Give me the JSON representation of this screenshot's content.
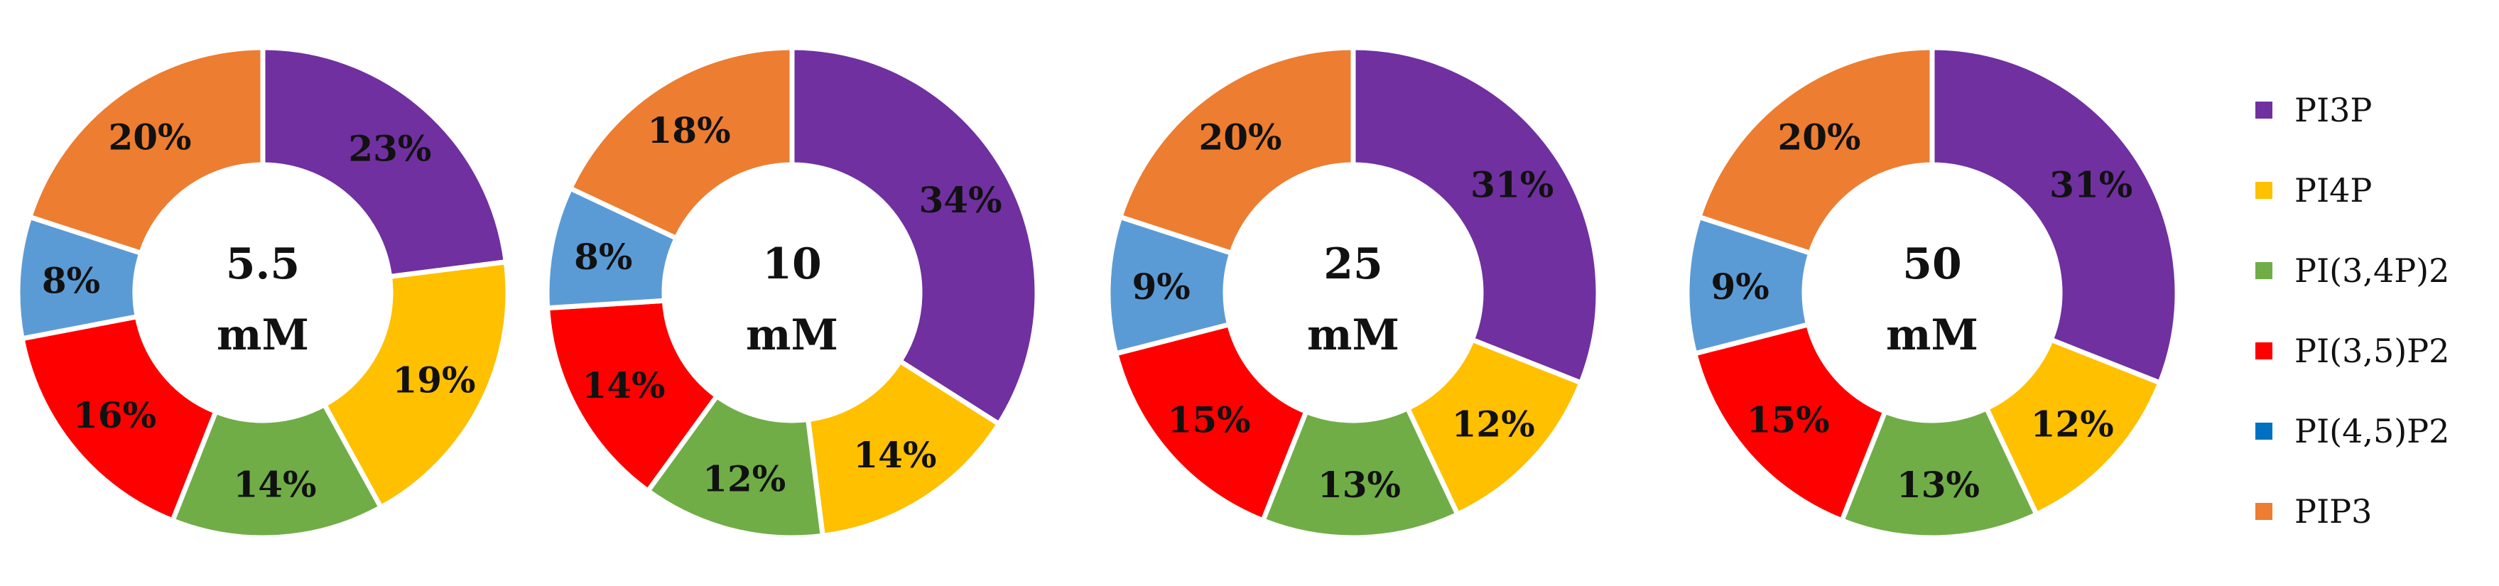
{
  "colors": {
    "PI3P": "#7030A0",
    "PI4P": "#FFC000",
    "PI(3,4P)2": "#70AD47",
    "PI(3,5)P2": "#FF0000",
    "PI(4,5)P2": "#0070C0",
    "PIP3": "#ED7D31",
    "PI(4,5)P2_slice": "#5B9BD5"
  },
  "legend": {
    "placement": "right",
    "items": [
      "PI3P",
      "PI4P",
      "PI(3,4P)2",
      "PI(3,5)P2",
      "PI(4,5)P2",
      "PIP3"
    ]
  },
  "chart_data": [
    {
      "type": "pie",
      "center_value": "5.5",
      "center_unit": "mM",
      "categories": [
        "PI3P",
        "PI4P",
        "PI(3,4P)2",
        "PI(3,5)P2",
        "PI(4,5)P2",
        "PIP3"
      ],
      "values": [
        23,
        19,
        14,
        16,
        8,
        20
      ],
      "labels": [
        "23%",
        "19%",
        "14%",
        "16%",
        "8%",
        "20%"
      ]
    },
    {
      "type": "pie",
      "center_value": "10",
      "center_unit": "mM",
      "categories": [
        "PI3P",
        "PI4P",
        "PI(3,4P)2",
        "PI(3,5)P2",
        "PI(4,5)P2",
        "PIP3"
      ],
      "values": [
        34,
        14,
        12,
        14,
        8,
        18
      ],
      "labels": [
        "34%",
        "14%",
        "12%",
        "14%",
        "8%",
        "18%"
      ]
    },
    {
      "type": "pie",
      "center_value": "25",
      "center_unit": "mM",
      "categories": [
        "PI3P",
        "PI4P",
        "PI(3,4P)2",
        "PI(3,5)P2",
        "PI(4,5)P2",
        "PIP3"
      ],
      "values": [
        31,
        12,
        13,
        15,
        9,
        20
      ],
      "labels": [
        "31%",
        "12%",
        "13%",
        "15%",
        "9%",
        "20%"
      ]
    },
    {
      "type": "pie",
      "center_value": "50",
      "center_unit": "mM",
      "categories": [
        "PI3P",
        "PI4P",
        "PI(3,4P)2",
        "PI(3,5)P2",
        "PI(4,5)P2",
        "PIP3"
      ],
      "values": [
        31,
        12,
        13,
        15,
        9,
        20
      ],
      "labels": [
        "31%",
        "12%",
        "13%",
        "15%",
        "9%",
        "20%"
      ]
    }
  ]
}
